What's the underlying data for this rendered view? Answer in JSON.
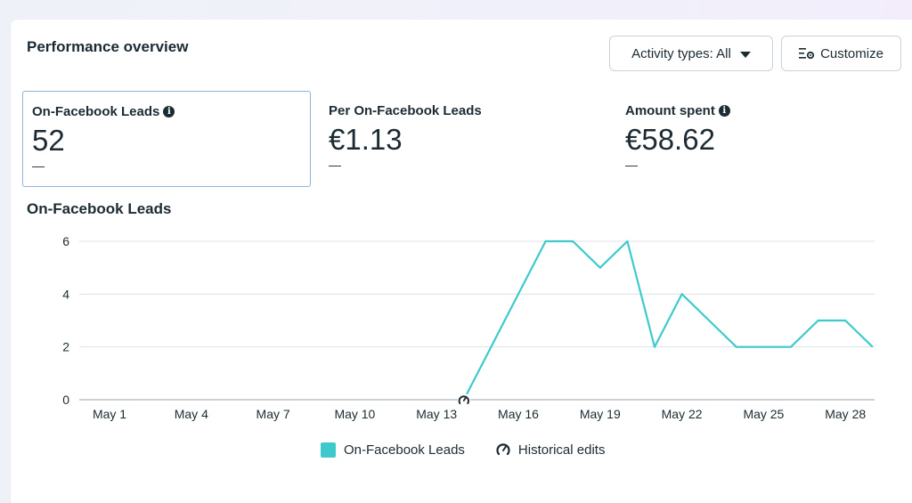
{
  "header": {
    "title": "Performance overview",
    "activity_button": "Activity types: All",
    "customize_button": "Customize"
  },
  "metrics": [
    {
      "label": "On-Facebook Leads",
      "value": "52",
      "delta": "—",
      "has_info": true,
      "selected": true
    },
    {
      "label": "Per On-Facebook Leads",
      "value": "€1.13",
      "delta": "—",
      "has_info": false,
      "selected": false
    },
    {
      "label": "Amount spent",
      "value": "€58.62",
      "delta": "—",
      "has_info": true,
      "selected": false
    }
  ],
  "chart_title": "On-Facebook Leads",
  "chart_data": {
    "type": "line",
    "ylim": [
      0,
      6
    ],
    "yticks": [
      0,
      2,
      4,
      6
    ],
    "xticks": [
      "May 1",
      "May 4",
      "May 7",
      "May 10",
      "May 13",
      "May 16",
      "May 19",
      "May 22",
      "May 25",
      "May 28"
    ],
    "grid": true,
    "legend_placement": "bottom",
    "series": [
      {
        "name": "On-Facebook Leads",
        "color": "#3ec9cc",
        "x": [
          "May 14",
          "May 15",
          "May 16",
          "May 17",
          "May 18",
          "May 19",
          "May 20",
          "May 21",
          "May 22",
          "May 23",
          "May 24",
          "May 25",
          "May 26",
          "May 27",
          "May 28",
          "May 29"
        ],
        "values": [
          0,
          2,
          4,
          6,
          6,
          5,
          6,
          2,
          4,
          3,
          2,
          2,
          2,
          3,
          3,
          2
        ]
      }
    ],
    "historical_edits": [
      "May 14"
    ]
  },
  "legend": {
    "series_label": "On-Facebook Leads",
    "edits_label": "Historical edits"
  }
}
